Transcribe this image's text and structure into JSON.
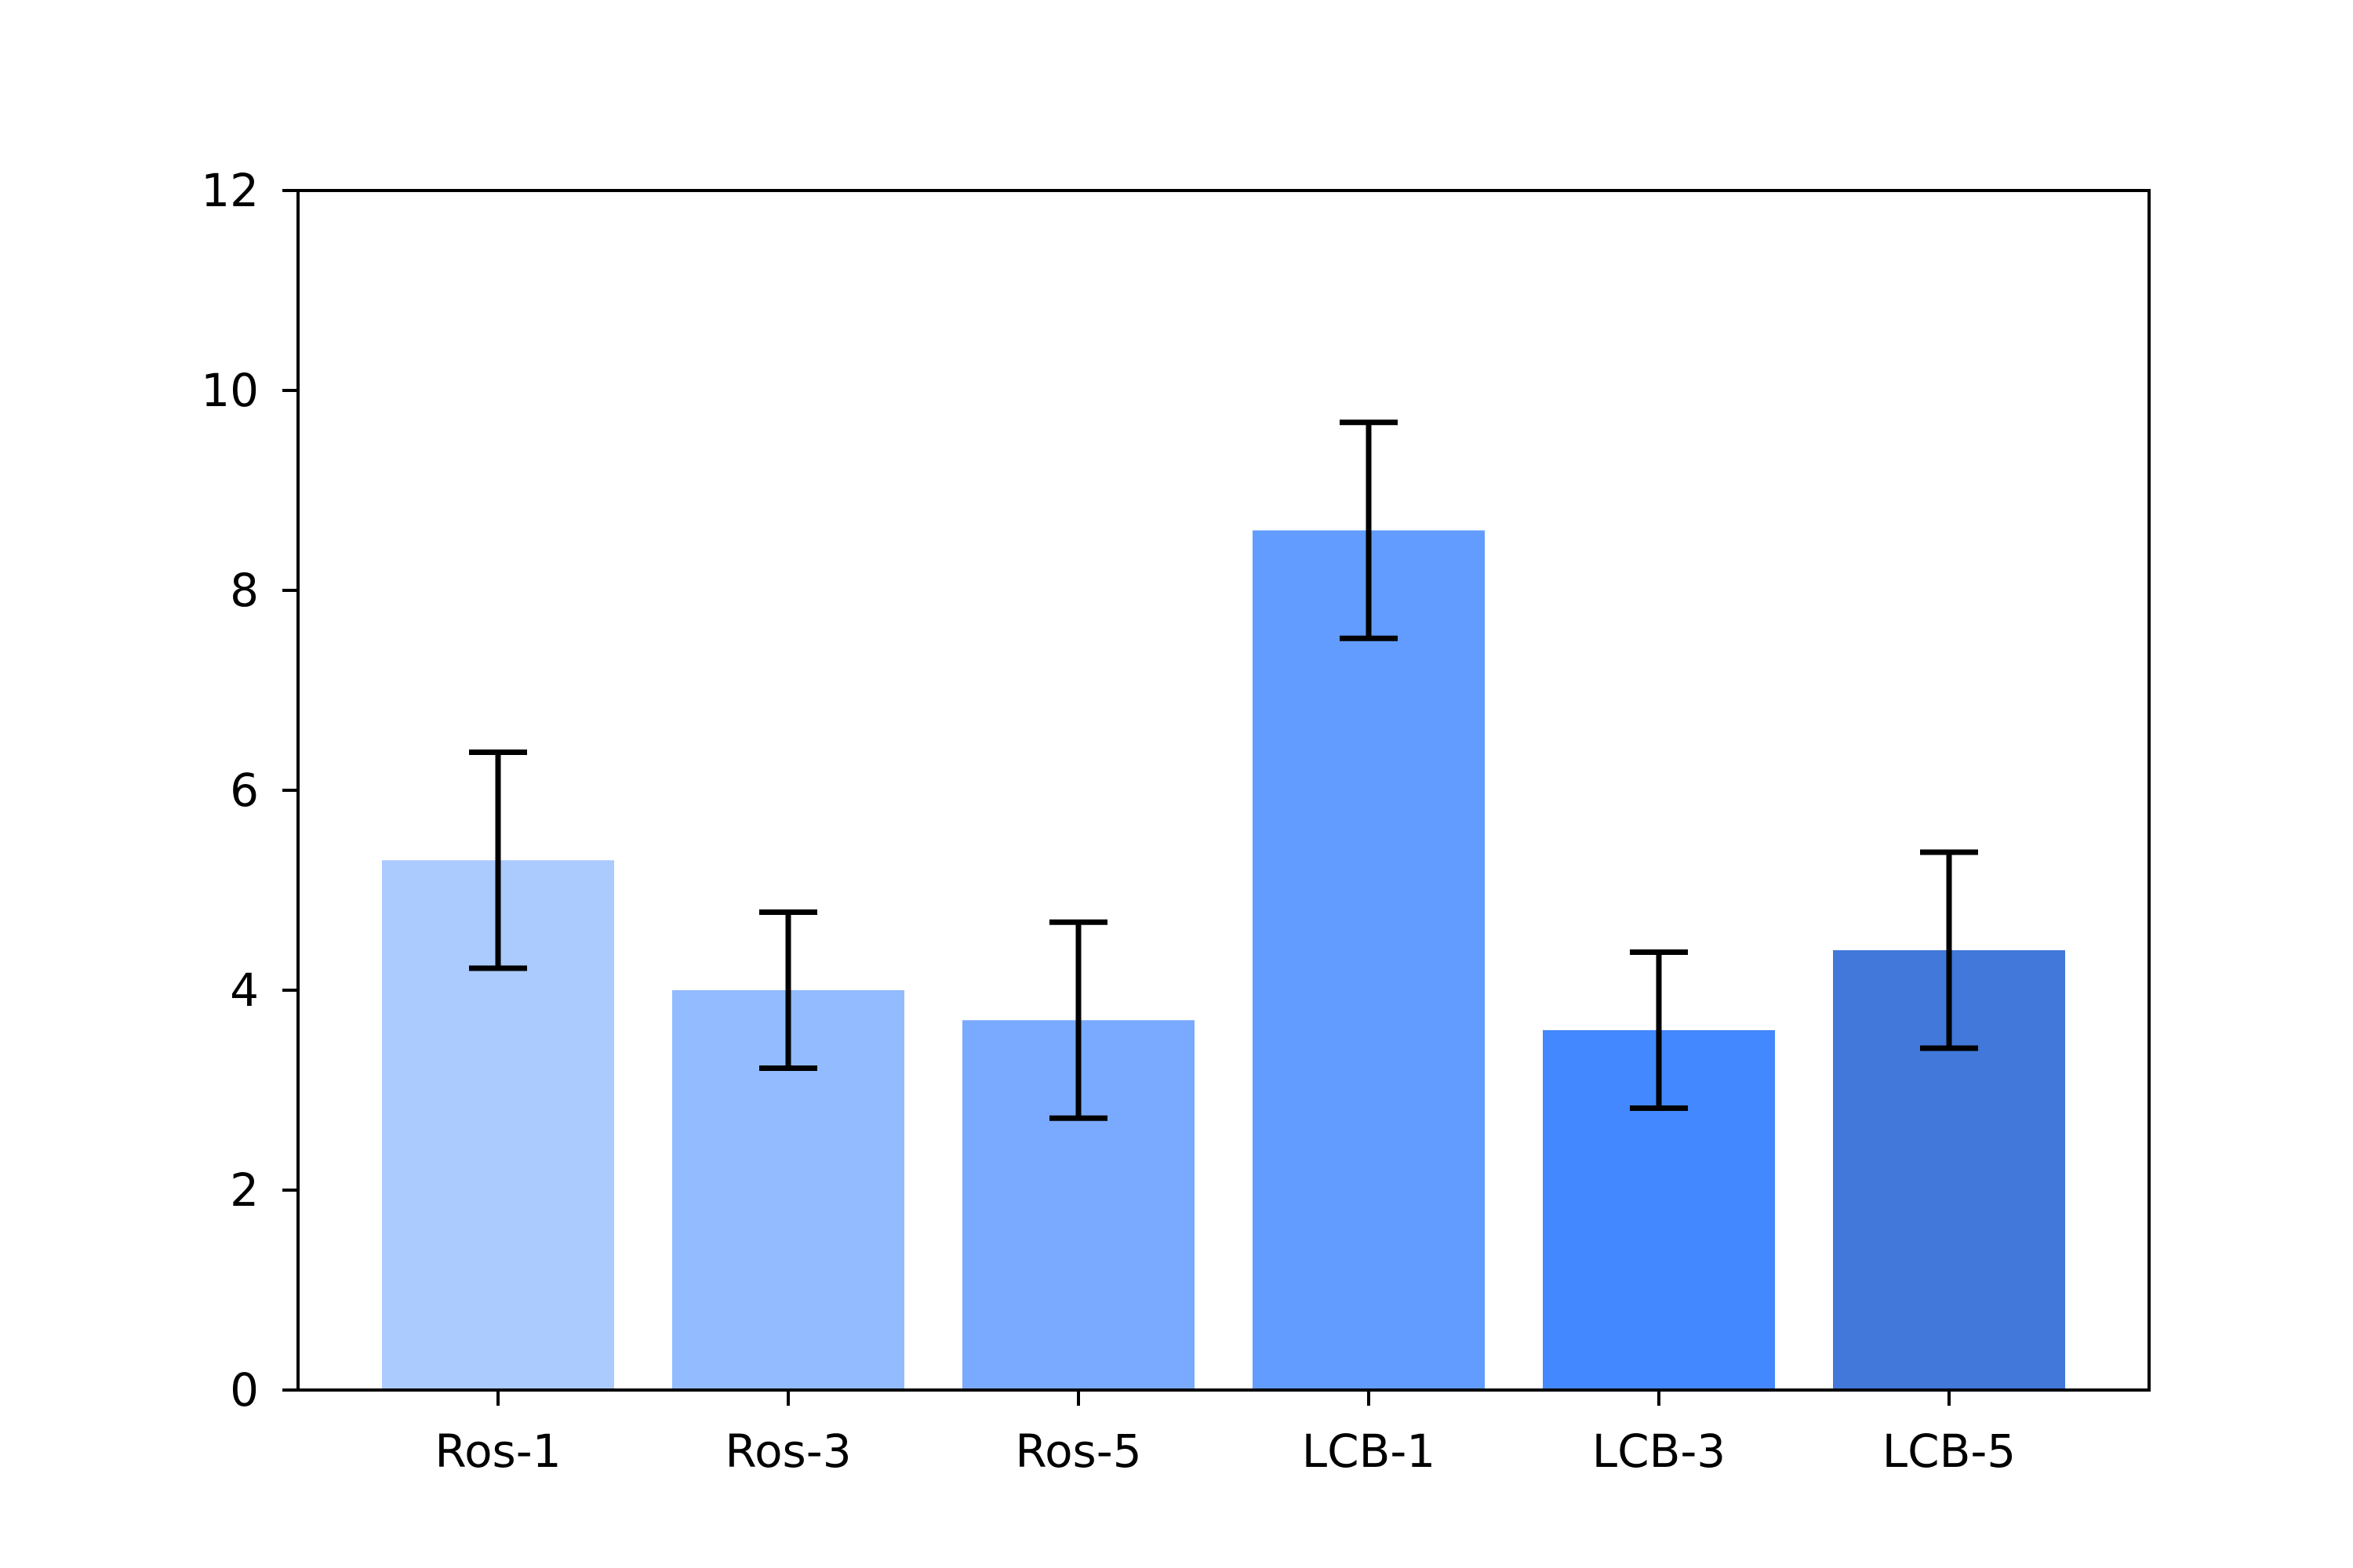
{
  "chart_data": {
    "type": "bar",
    "categories": [
      "Ros-1",
      "Ros-3",
      "Ros-5",
      "LCB-1",
      "LCB-3",
      "LCB-5"
    ],
    "values": [
      5.3,
      4.0,
      3.7,
      8.6,
      3.6,
      4.4
    ],
    "errors": [
      1.08,
      0.78,
      0.98,
      1.08,
      0.78,
      0.98
    ],
    "colors": [
      "#abcbff",
      "#93bbff",
      "#7aaaff",
      "#629cff",
      "#4488ff",
      "#4178d9"
    ],
    "error_color": "#000000",
    "title": "",
    "xlabel": "",
    "ylabel": "",
    "ylim": [
      0,
      12
    ],
    "yticks": [
      0,
      2,
      4,
      6,
      8,
      10,
      12
    ],
    "grid": false,
    "legend": "none"
  }
}
